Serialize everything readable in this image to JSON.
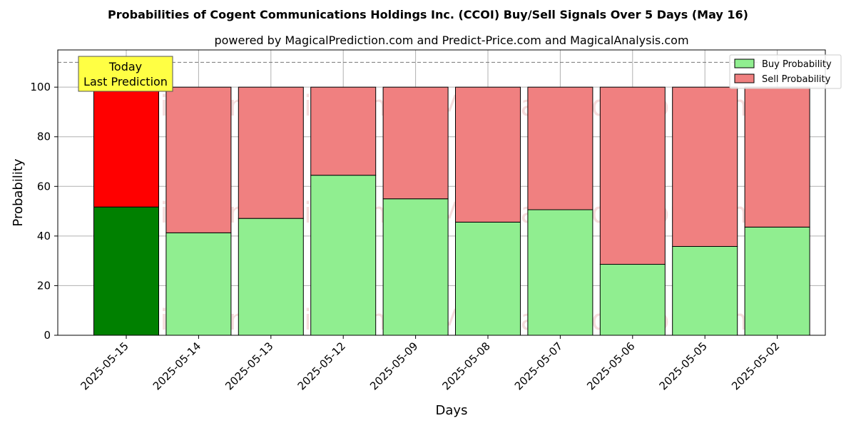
{
  "chart_data": {
    "type": "bar",
    "stacked": true,
    "title": "Probabilities of Cogent Communications Holdings Inc. (CCOI) Buy/Sell Signals Over 5 Days (May 16)",
    "subtitle": "powered by MagicalPrediction.com and Predict-Price.com and MagicalAnalysis.com",
    "xlabel": "Days",
    "ylabel": "Probability",
    "ylim": [
      0,
      115
    ],
    "yticks": [
      0,
      20,
      40,
      60,
      80,
      100
    ],
    "grid": true,
    "reference_line": 110,
    "categories": [
      "2025-05-15",
      "2025-05-14",
      "2025-05-13",
      "2025-05-12",
      "2025-05-09",
      "2025-05-08",
      "2025-05-07",
      "2025-05-06",
      "2025-05-05",
      "2025-05-02"
    ],
    "series": [
      {
        "name": "Buy Probability",
        "color": "#90ee90",
        "highlight_color": "#008000",
        "values": [
          51.7,
          41.3,
          47.1,
          64.5,
          55.0,
          45.6,
          50.6,
          28.6,
          35.8,
          43.6
        ]
      },
      {
        "name": "Sell Probability",
        "color": "#f08080",
        "highlight_color": "#ff0000",
        "values": [
          48.3,
          58.7,
          52.9,
          35.5,
          45.0,
          54.4,
          49.4,
          71.4,
          64.2,
          56.4
        ]
      }
    ],
    "legend_position": "top-right",
    "annotation": {
      "line1": "Today",
      "line2": "Last Prediction",
      "color": "#ffff44"
    },
    "watermarks": [
      "MagicalAnalysis.com",
      "MagicalPrediction.com"
    ]
  }
}
